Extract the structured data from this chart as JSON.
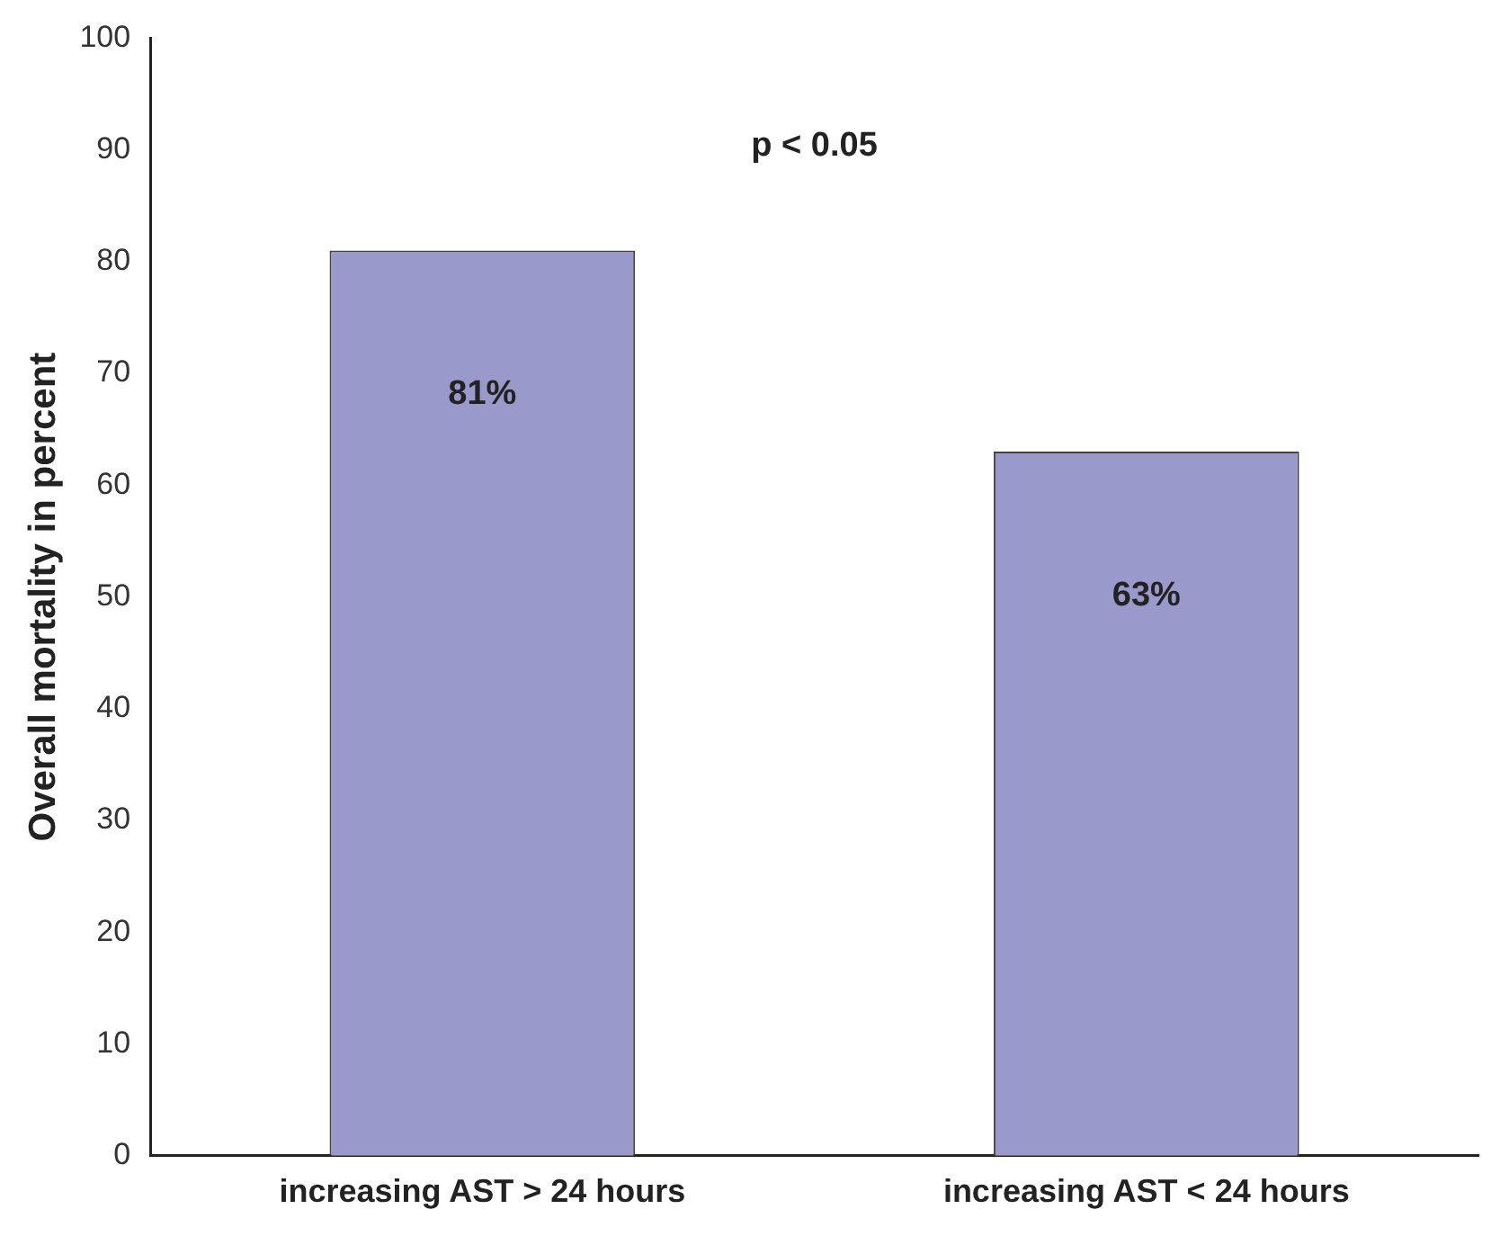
{
  "chart_data": {
    "type": "bar",
    "ylabel": "Overall mortality in percent",
    "categories": [
      "increasing AST > 24 hours",
      "increasing AST < 24 hours"
    ],
    "values": [
      81,
      63
    ],
    "value_labels": [
      "81%",
      "63%"
    ],
    "color": "#9999cc",
    "ylim": [
      0,
      100
    ],
    "yticks": [
      0,
      10,
      20,
      30,
      40,
      50,
      60,
      70,
      80,
      90,
      100
    ],
    "grid": false,
    "annotations": [
      "p < 0.05"
    ]
  }
}
